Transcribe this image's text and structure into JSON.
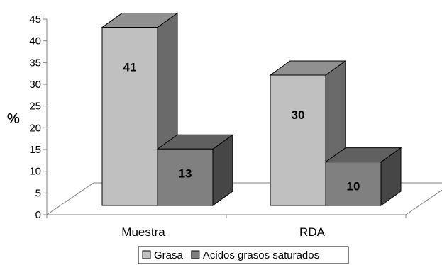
{
  "chart_data": {
    "type": "bar",
    "title": "",
    "xlabel": "",
    "ylabel": "%",
    "ylim": [
      0,
      45
    ],
    "yticks": [
      "0",
      "5",
      "10",
      "15",
      "20",
      "25",
      "30",
      "35",
      "40",
      "45"
    ],
    "categories": [
      "Muestra",
      "RDA"
    ],
    "series": [
      {
        "name": "Grasa",
        "values": [
          41,
          30
        ],
        "color": "#c0c0c0"
      },
      {
        "name": "Acidos grasos saturados",
        "values": [
          13,
          10
        ],
        "color": "#808080"
      }
    ],
    "data_labels": true,
    "grid": false,
    "legend_position": "bottom",
    "style": "3d-clustered-bar"
  }
}
